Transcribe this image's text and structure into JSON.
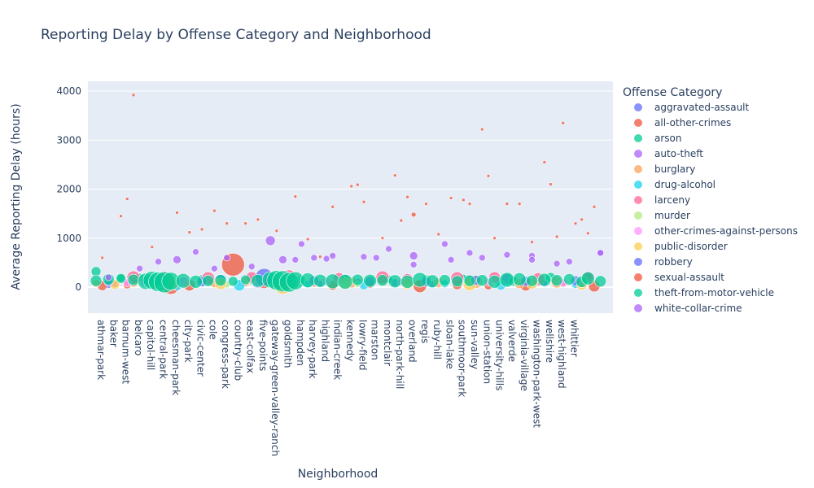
{
  "chart_data": {
    "type": "scatter",
    "title": "Reporting Delay by Offense Category and Neighborhood",
    "xlabel": "Neighborhood",
    "ylabel": "Average Reporting Delay (hours)",
    "ylim": [
      -530,
      4200
    ],
    "yticks": [
      0,
      1000,
      2000,
      3000,
      4000
    ],
    "grid": true,
    "legend_title": "Offense Category",
    "legend_position": "right",
    "neighborhoods_labeled": [
      "athmar-park",
      "baker",
      "barnum-west",
      "belcaro",
      "capitol-hill",
      "central-park",
      "cheesman-park",
      "city-park",
      "civic-center",
      "cole",
      "congress-park",
      "country-club",
      "east-colfax",
      "five-points",
      "gateway-green-valley-ranch",
      "goldsmith",
      "hampden",
      "harvey-park",
      "highland",
      "indian-creek",
      "kennedy",
      "lowry-field",
      "marston",
      "montclair",
      "north-park-hill",
      "overland",
      "regis",
      "ruby-hill",
      "sloan-lake",
      "southmoor-park",
      "sun-valley",
      "union-station",
      "university-hills",
      "valverde",
      "virginia-village",
      "washington-park-west",
      "wellshire",
      "west-highland",
      "whittier"
    ],
    "series": [
      {
        "name": "aggravated-assault",
        "color": "#636efa",
        "points": [
          [
            2,
            40,
            4
          ],
          [
            8,
            60,
            4
          ],
          [
            14,
            120,
            6
          ],
          [
            20,
            150,
            7
          ],
          [
            26,
            130,
            9
          ],
          [
            30,
            110,
            7
          ],
          [
            36,
            70,
            4
          ],
          [
            42,
            100,
            5
          ],
          [
            48,
            90,
            5
          ],
          [
            54,
            60,
            4
          ],
          [
            60,
            140,
            6
          ],
          [
            66,
            160,
            7
          ],
          [
            72,
            80,
            4
          ],
          [
            78,
            60,
            4
          ]
        ]
      },
      {
        "name": "all-other-crimes",
        "color": "#EF553B",
        "points": [
          [
            1,
            30,
            6
          ],
          [
            5,
            50,
            5
          ],
          [
            9,
            70,
            5
          ],
          [
            12,
            20,
            10
          ],
          [
            15,
            40,
            7
          ],
          [
            22,
            460,
            14
          ],
          [
            27,
            90,
            7
          ],
          [
            31,
            110,
            9
          ],
          [
            38,
            40,
            6
          ],
          [
            44,
            60,
            5
          ],
          [
            52,
            20,
            8
          ],
          [
            58,
            50,
            6
          ],
          [
            63,
            30,
            5
          ],
          [
            69,
            40,
            7
          ],
          [
            75,
            80,
            5
          ],
          [
            80,
            20,
            7
          ]
        ]
      },
      {
        "name": "arson",
        "color": "#00cc96",
        "points": [
          [
            0,
            320,
            6
          ],
          [
            4,
            180,
            5
          ],
          [
            7,
            200,
            5
          ],
          [
            17,
            150,
            6
          ],
          [
            25,
            140,
            5
          ],
          [
            33,
            160,
            5
          ],
          [
            40,
            170,
            6
          ],
          [
            47,
            160,
            5
          ],
          [
            53,
            150,
            6
          ],
          [
            59,
            180,
            5
          ],
          [
            67,
            120,
            6
          ],
          [
            73,
            200,
            6
          ],
          [
            79,
            220,
            5
          ]
        ]
      },
      {
        "name": "auto-theft",
        "color": "#ab63fa",
        "points": [
          [
            3,
            60,
            4
          ],
          [
            10,
            520,
            4
          ],
          [
            16,
            720,
            4
          ],
          [
            21,
            600,
            4
          ],
          [
            28,
            950,
            6
          ],
          [
            32,
            560,
            4
          ],
          [
            37,
            580,
            4
          ],
          [
            45,
            600,
            4
          ],
          [
            51,
            460,
            4
          ],
          [
            57,
            560,
            4
          ],
          [
            62,
            600,
            4
          ],
          [
            70,
            640,
            4
          ],
          [
            76,
            520,
            4
          ],
          [
            81,
            700,
            4
          ]
        ]
      },
      {
        "name": "burglary",
        "color": "#FFA15A",
        "points": [
          [
            0,
            80,
            5
          ],
          [
            6,
            100,
            6
          ],
          [
            11,
            120,
            8
          ],
          [
            19,
            90,
            6
          ],
          [
            24,
            110,
            6
          ],
          [
            29,
            60,
            7
          ],
          [
            35,
            80,
            5
          ],
          [
            41,
            100,
            7
          ],
          [
            46,
            130,
            6
          ],
          [
            55,
            90,
            6
          ],
          [
            61,
            110,
            8
          ],
          [
            68,
            70,
            6
          ],
          [
            74,
            100,
            7
          ]
        ]
      },
      {
        "name": "drug-alcohol",
        "color": "#19d3f3",
        "points": [
          [
            13,
            30,
            6
          ],
          [
            23,
            40,
            7
          ],
          [
            34,
            60,
            5
          ],
          [
            43,
            50,
            6
          ],
          [
            56,
            70,
            5
          ],
          [
            65,
            40,
            6
          ],
          [
            77,
            60,
            5
          ]
        ]
      },
      {
        "name": "larceny",
        "color": "#FF6692",
        "points": [
          [
            6,
            200,
            8
          ],
          [
            11,
            160,
            9
          ],
          [
            18,
            180,
            8
          ],
          [
            25,
            200,
            7
          ],
          [
            31,
            220,
            8
          ],
          [
            39,
            180,
            7
          ],
          [
            46,
            200,
            8
          ],
          [
            50,
            160,
            7
          ],
          [
            58,
            180,
            8
          ],
          [
            64,
            200,
            7
          ],
          [
            71,
            160,
            8
          ],
          [
            79,
            200,
            7
          ]
        ]
      },
      {
        "name": "murder",
        "color": "#B6E880",
        "points": [
          [
            9,
            70,
            4
          ],
          [
            21,
            50,
            4
          ],
          [
            42,
            60,
            4
          ],
          [
            60,
            80,
            4
          ]
        ]
      },
      {
        "name": "other-crimes-against-persons",
        "color": "#FF97FF",
        "points": [
          [
            5,
            90,
            5
          ],
          [
            14,
            110,
            6
          ],
          [
            26,
            100,
            5
          ],
          [
            37,
            120,
            5
          ],
          [
            49,
            100,
            5
          ],
          [
            63,
            110,
            5
          ],
          [
            75,
            90,
            5
          ]
        ]
      },
      {
        "name": "public-disorder",
        "color": "#FECB52",
        "points": [
          [
            3,
            60,
            6
          ],
          [
            12,
            80,
            9
          ],
          [
            20,
            70,
            7
          ],
          [
            30,
            40,
            11
          ],
          [
            40,
            80,
            7
          ],
          [
            50,
            70,
            7
          ],
          [
            60,
            60,
            8
          ],
          [
            70,
            80,
            7
          ],
          [
            78,
            60,
            7
          ]
        ]
      },
      {
        "name": "robbery",
        "color": "#636efa",
        "points": [
          [
            2,
            100,
            5
          ],
          [
            8,
            120,
            6
          ],
          [
            17,
            110,
            6
          ],
          [
            27,
            200,
            11
          ],
          [
            35,
            130,
            6
          ],
          [
            44,
            120,
            6
          ],
          [
            53,
            110,
            6
          ],
          [
            61,
            140,
            6
          ],
          [
            69,
            120,
            6
          ],
          [
            77,
            130,
            6
          ]
        ]
      },
      {
        "name": "sexual-assault",
        "color": "#EF553B",
        "points": [
          [
            1,
            600,
            2
          ],
          [
            4,
            1450,
            2
          ],
          [
            5,
            1800,
            2
          ],
          [
            6,
            3920,
            2
          ],
          [
            9,
            820,
            2
          ],
          [
            13,
            1520,
            2
          ],
          [
            15,
            1120,
            2
          ],
          [
            17,
            1180,
            2
          ],
          [
            19,
            1560,
            2
          ],
          [
            21,
            1300,
            2
          ],
          [
            24,
            1300,
            2
          ],
          [
            26,
            1380,
            2
          ],
          [
            29,
            1150,
            2
          ],
          [
            32,
            1850,
            2
          ],
          [
            34,
            980,
            2
          ],
          [
            36,
            620,
            2
          ],
          [
            38,
            1640,
            2
          ],
          [
            41,
            2060,
            2
          ],
          [
            42,
            2090,
            2
          ],
          [
            43,
            1740,
            2
          ],
          [
            46,
            1000,
            2
          ],
          [
            48,
            2280,
            2
          ],
          [
            49,
            1360,
            2
          ],
          [
            50,
            1840,
            2
          ],
          [
            51,
            1480,
            3
          ],
          [
            53,
            1700,
            2
          ],
          [
            55,
            1080,
            2
          ],
          [
            57,
            1820,
            2
          ],
          [
            59,
            1780,
            2
          ],
          [
            60,
            1700,
            2
          ],
          [
            62,
            3220,
            2
          ],
          [
            63,
            2270,
            2
          ],
          [
            64,
            1000,
            2
          ],
          [
            66,
            1700,
            2
          ],
          [
            68,
            1700,
            2
          ],
          [
            70,
            920,
            2
          ],
          [
            72,
            2550,
            2
          ],
          [
            73,
            2100,
            2
          ],
          [
            74,
            1030,
            2
          ],
          [
            75,
            3350,
            2
          ],
          [
            77,
            1300,
            2
          ],
          [
            78,
            1380,
            2
          ],
          [
            79,
            1100,
            2
          ],
          [
            80,
            1640,
            2
          ]
        ]
      },
      {
        "name": "theft-from-motor-vehicle",
        "color": "#00cc96",
        "points": [
          [
            0,
            130,
            7
          ],
          [
            2,
            160,
            7
          ],
          [
            4,
            180,
            6
          ],
          [
            6,
            150,
            7
          ],
          [
            8,
            120,
            10
          ],
          [
            9,
            140,
            11
          ],
          [
            10,
            110,
            12
          ],
          [
            11,
            100,
            13
          ],
          [
            12,
            120,
            11
          ],
          [
            14,
            130,
            9
          ],
          [
            16,
            110,
            8
          ],
          [
            18,
            130,
            7
          ],
          [
            20,
            140,
            7
          ],
          [
            22,
            120,
            6
          ],
          [
            24,
            150,
            6
          ],
          [
            26,
            130,
            8
          ],
          [
            28,
            150,
            10
          ],
          [
            29,
            140,
            12
          ],
          [
            30,
            120,
            13
          ],
          [
            31,
            100,
            12
          ],
          [
            32,
            130,
            11
          ],
          [
            34,
            140,
            9
          ],
          [
            36,
            130,
            8
          ],
          [
            38,
            120,
            9
          ],
          [
            40,
            110,
            9
          ],
          [
            42,
            150,
            7
          ],
          [
            44,
            130,
            8
          ],
          [
            46,
            140,
            7
          ],
          [
            48,
            120,
            8
          ],
          [
            50,
            110,
            8
          ],
          [
            52,
            150,
            9
          ],
          [
            54,
            120,
            8
          ],
          [
            56,
            140,
            7
          ],
          [
            58,
            120,
            7
          ],
          [
            60,
            130,
            7
          ],
          [
            62,
            140,
            7
          ],
          [
            64,
            110,
            8
          ],
          [
            66,
            150,
            9
          ],
          [
            68,
            160,
            8
          ],
          [
            70,
            130,
            7
          ],
          [
            72,
            150,
            8
          ],
          [
            74,
            140,
            7
          ],
          [
            76,
            160,
            7
          ],
          [
            78,
            110,
            7
          ],
          [
            79,
            180,
            8
          ],
          [
            81,
            120,
            7
          ]
        ]
      },
      {
        "name": "white-collar-crime",
        "color": "#ab63fa",
        "points": [
          [
            2,
            200,
            4
          ],
          [
            7,
            380,
            4
          ],
          [
            13,
            560,
            5
          ],
          [
            19,
            380,
            4
          ],
          [
            25,
            420,
            4
          ],
          [
            30,
            560,
            5
          ],
          [
            33,
            880,
            4
          ],
          [
            35,
            600,
            4
          ],
          [
            38,
            640,
            4
          ],
          [
            43,
            620,
            4
          ],
          [
            47,
            780,
            4
          ],
          [
            51,
            640,
            5
          ],
          [
            56,
            880,
            4
          ],
          [
            60,
            700,
            4
          ],
          [
            66,
            660,
            4
          ],
          [
            70,
            560,
            4
          ],
          [
            74,
            480,
            4
          ],
          [
            81,
            700,
            4
          ]
        ]
      }
    ]
  }
}
